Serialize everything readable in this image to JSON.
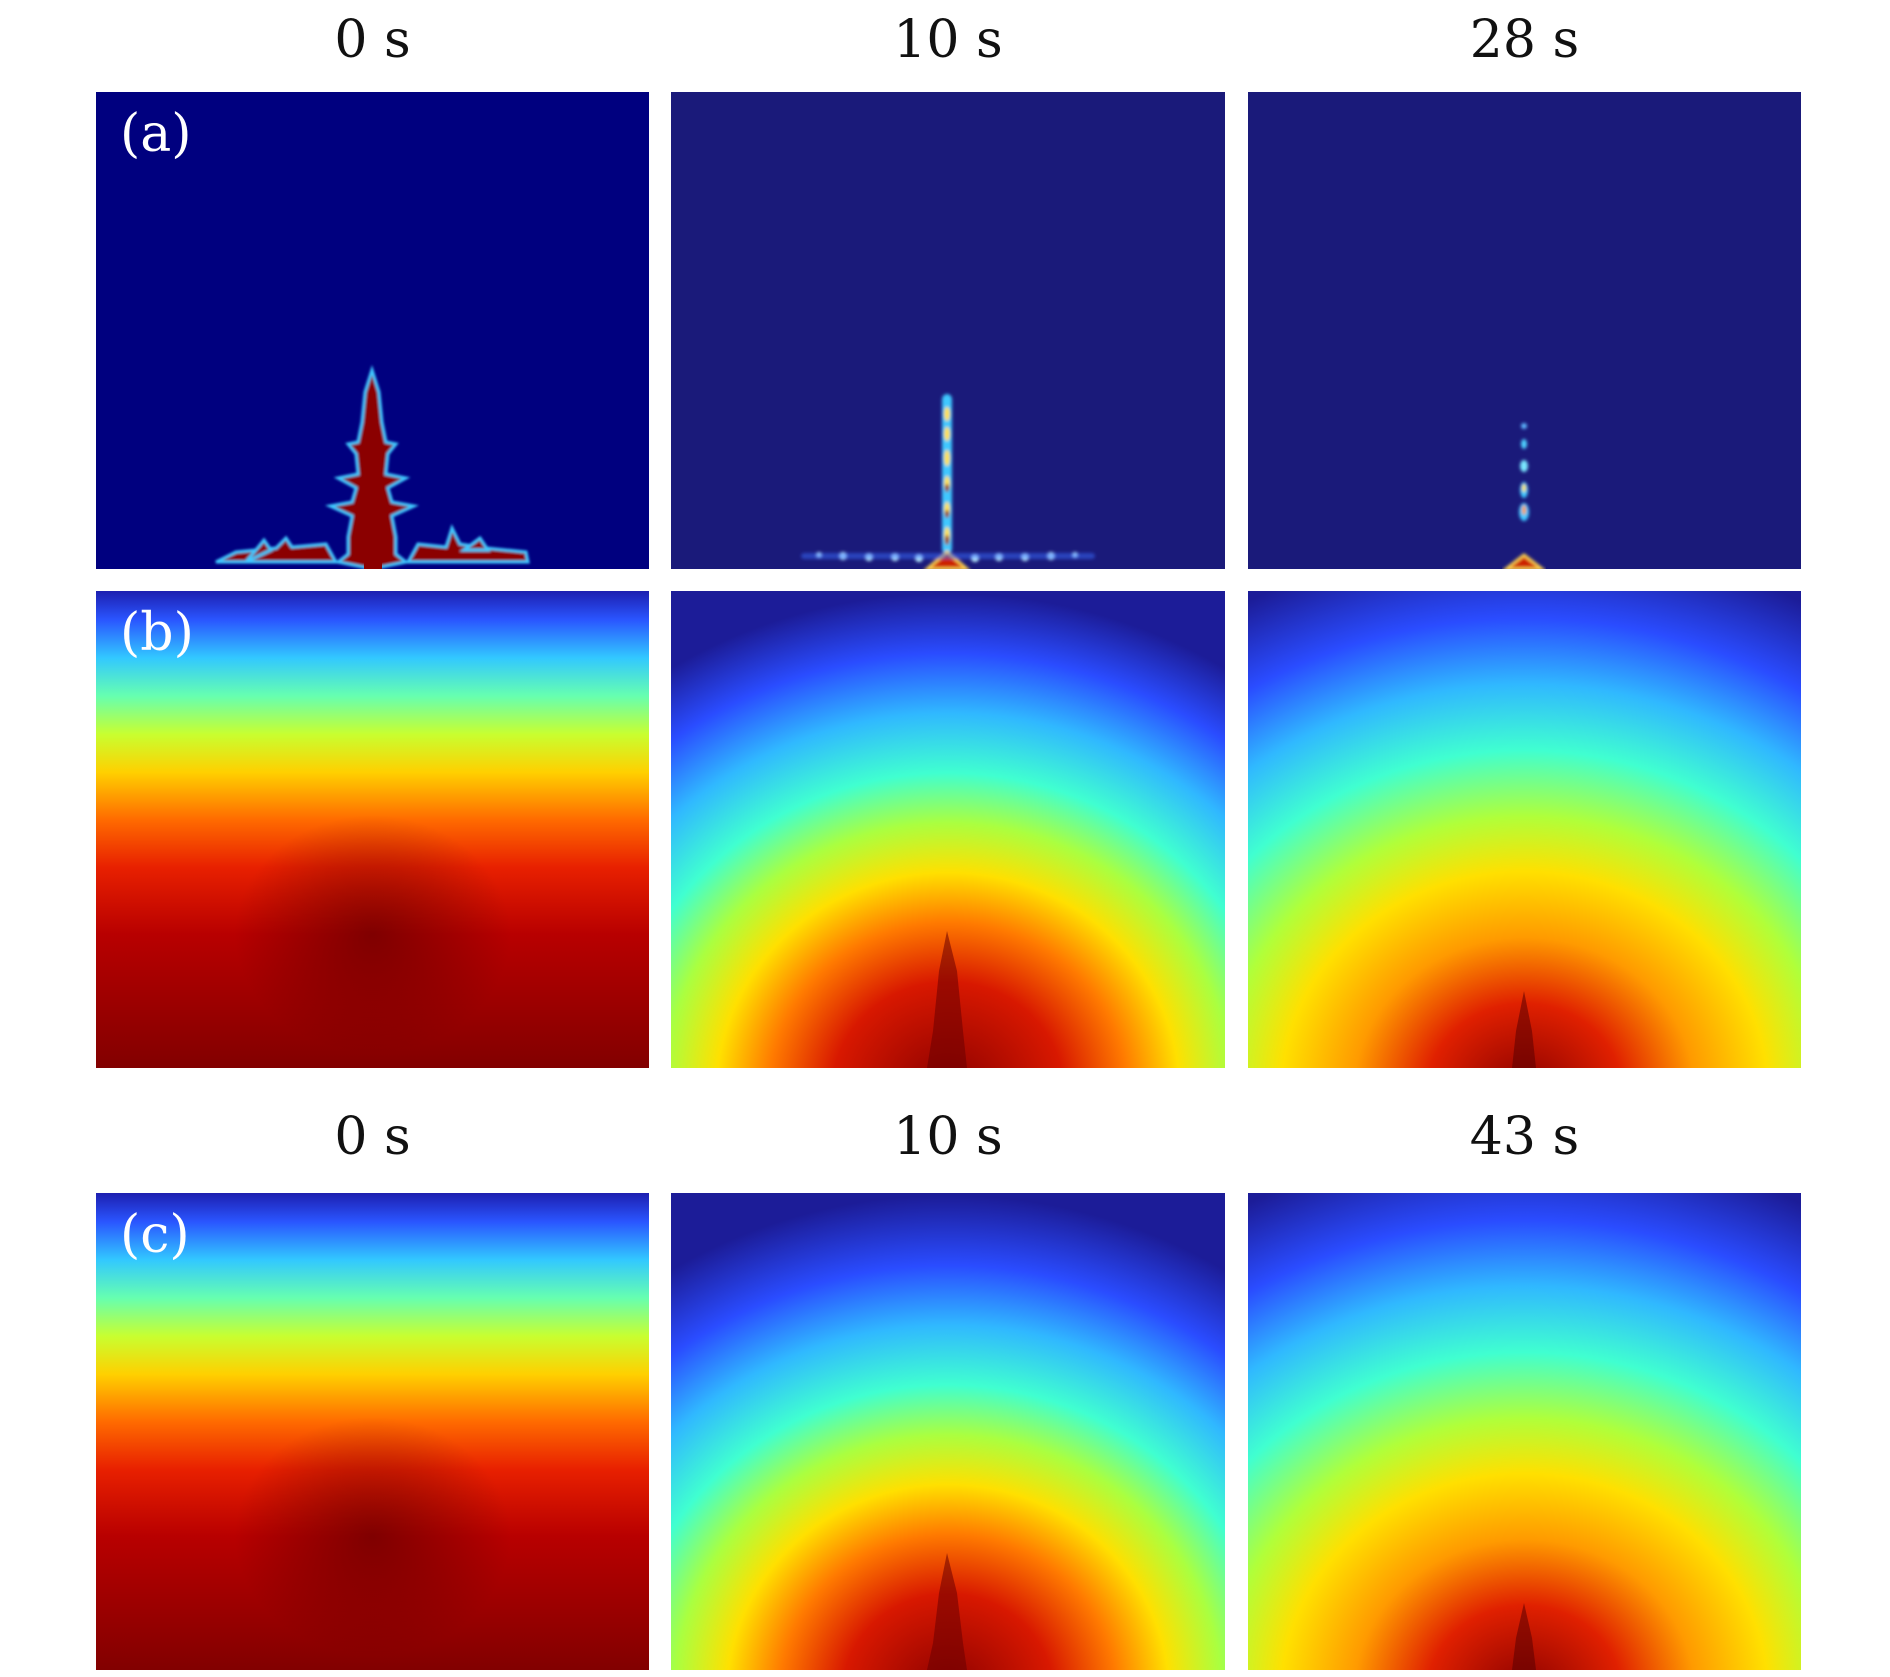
{
  "top_times": [
    "0 s",
    "10 s",
    "28 s"
  ],
  "bottom_times": [
    "0 s",
    "10 s",
    "43 s"
  ],
  "row_labels": {
    "a": "(a)",
    "b": "(b)",
    "c": "(c)"
  }
}
